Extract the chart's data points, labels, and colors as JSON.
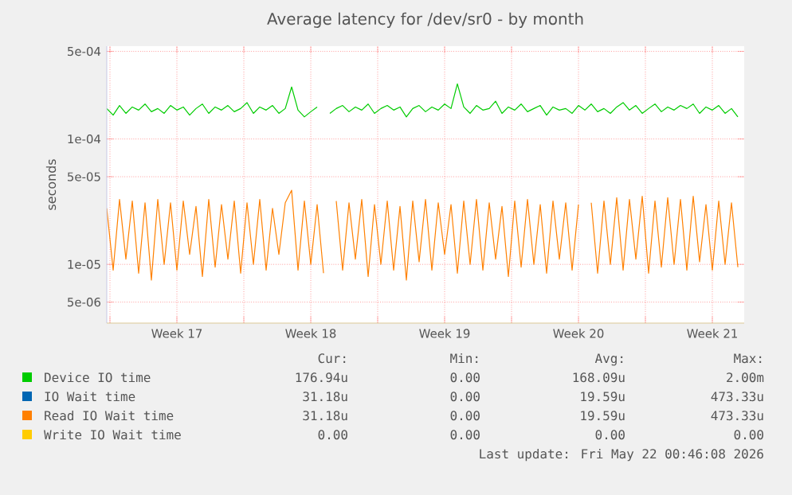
{
  "chart_data": {
    "type": "line",
    "title": "Average latency for /dev/sr0 - by month",
    "ylabel": "seconds",
    "log": "y",
    "grid": true,
    "legend": "bottom",
    "marker": "none",
    "line_style": "solid",
    "xlim": [
      "2026-04-19T20:00",
      "2026-05-23T04:00"
    ],
    "xticks": [
      {
        "value": "2026-04-20",
        "label": null
      },
      {
        "value": "2026-04-23T12:00",
        "label": "Week 17"
      },
      {
        "value": "2026-04-27",
        "label": null
      },
      {
        "value": "2026-04-30T12:00",
        "label": "Week 18"
      },
      {
        "value": "2026-05-04",
        "label": null
      },
      {
        "value": "2026-05-07T12:00",
        "label": "Week 19"
      },
      {
        "value": "2026-05-11",
        "label": null
      },
      {
        "value": "2026-05-14T12:00",
        "label": "Week 20"
      },
      {
        "value": "2026-05-18",
        "label": null
      },
      {
        "value": "2026-05-21T12:00",
        "label": "Week 21"
      }
    ],
    "ylim": [
      3.4e-06,
      0.00055
    ],
    "yticks": [
      {
        "value": 5e-06,
        "label": "5e-06"
      },
      {
        "value": 1e-05,
        "label": "1e-05"
      },
      {
        "value": 5e-05,
        "label": "5e-05"
      },
      {
        "value": 0.0001,
        "label": "1e-04"
      },
      {
        "value": 0.0005,
        "label": "5e-04"
      }
    ],
    "x": [
      "2026-04-19T20:00",
      "2026-04-20T04:00",
      "2026-04-20T12:00",
      "2026-04-20T20:00",
      "2026-04-21T04:00",
      "2026-04-21T12:00",
      "2026-04-21T20:00",
      "2026-04-22T04:00",
      "2026-04-22T12:00",
      "2026-04-22T20:00",
      "2026-04-23T04:00",
      "2026-04-23T12:00",
      "2026-04-23T20:00",
      "2026-04-24T04:00",
      "2026-04-24T12:00",
      "2026-04-24T20:00",
      "2026-04-25T04:00",
      "2026-04-25T12:00",
      "2026-04-25T20:00",
      "2026-04-26T04:00",
      "2026-04-26T12:00",
      "2026-04-26T20:00",
      "2026-04-27T04:00",
      "2026-04-27T12:00",
      "2026-04-27T20:00",
      "2026-04-28T04:00",
      "2026-04-28T12:00",
      "2026-04-28T20:00",
      "2026-04-29T04:00",
      "2026-04-29T12:00",
      "2026-04-29T20:00",
      "2026-04-30T04:00",
      "2026-04-30T12:00",
      "2026-04-30T20:00",
      "2026-05-01T04:00",
      "2026-05-01T12:00",
      "2026-05-01T20:00",
      "2026-05-02T04:00",
      "2026-05-02T12:00",
      "2026-05-02T20:00",
      "2026-05-03T04:00",
      "2026-05-03T12:00",
      "2026-05-03T20:00",
      "2026-05-04T04:00",
      "2026-05-04T12:00",
      "2026-05-04T20:00",
      "2026-05-05T04:00",
      "2026-05-05T12:00",
      "2026-05-05T20:00",
      "2026-05-06T04:00",
      "2026-05-06T12:00",
      "2026-05-06T20:00",
      "2026-05-07T04:00",
      "2026-05-07T12:00",
      "2026-05-07T20:00",
      "2026-05-08T04:00",
      "2026-05-08T12:00",
      "2026-05-08T20:00",
      "2026-05-09T04:00",
      "2026-05-09T12:00",
      "2026-05-09T20:00",
      "2026-05-10T04:00",
      "2026-05-10T12:00",
      "2026-05-10T20:00",
      "2026-05-11T04:00",
      "2026-05-11T12:00",
      "2026-05-11T20:00",
      "2026-05-12T04:00",
      "2026-05-12T12:00",
      "2026-05-12T20:00",
      "2026-05-13T04:00",
      "2026-05-13T12:00",
      "2026-05-13T20:00",
      "2026-05-14T04:00",
      "2026-05-14T12:00",
      "2026-05-14T20:00",
      "2026-05-15T04:00",
      "2026-05-15T12:00",
      "2026-05-15T20:00",
      "2026-05-16T04:00",
      "2026-05-16T12:00",
      "2026-05-16T20:00",
      "2026-05-17T04:00",
      "2026-05-17T12:00",
      "2026-05-17T20:00",
      "2026-05-18T04:00",
      "2026-05-18T12:00",
      "2026-05-18T20:00",
      "2026-05-19T04:00",
      "2026-05-19T12:00",
      "2026-05-19T20:00",
      "2026-05-20T04:00",
      "2026-05-20T12:00",
      "2026-05-20T20:00",
      "2026-05-21T04:00",
      "2026-05-21T12:00",
      "2026-05-21T20:00",
      "2026-05-22T04:00",
      "2026-05-22T12:00",
      "2026-05-22T20:00"
    ],
    "series": [
      {
        "name": "Device IO time",
        "color": "#00cc00",
        "values": [
          0.000175,
          0.000155,
          0.000185,
          0.00016,
          0.00018,
          0.00017,
          0.00019,
          0.000165,
          0.000175,
          0.00016,
          0.000185,
          0.00017,
          0.00018,
          0.000155,
          0.000175,
          0.00019,
          0.00016,
          0.00018,
          0.00017,
          0.000185,
          0.000165,
          0.000175,
          0.000195,
          0.00016,
          0.00018,
          0.00017,
          0.000185,
          0.00016,
          0.000175,
          0.00026,
          0.00017,
          0.00015,
          0.000165,
          0.00018,
          null,
          0.00016,
          0.000175,
          0.000185,
          0.000165,
          0.00018,
          0.00017,
          0.00019,
          0.00016,
          0.000175,
          0.000185,
          0.00017,
          0.00018,
          0.00015,
          0.000175,
          0.000185,
          0.000165,
          0.00018,
          0.00017,
          0.00019,
          0.000175,
          0.000275,
          0.00018,
          0.00016,
          0.000185,
          0.00017,
          0.000175,
          0.0002,
          0.00016,
          0.00018,
          0.00017,
          0.00019,
          0.000165,
          0.000175,
          0.000185,
          0.000155,
          0.00018,
          0.00017,
          0.000175,
          0.00016,
          0.000185,
          0.00017,
          0.00019,
          0.000165,
          0.000175,
          0.00016,
          0.00018,
          0.000195,
          0.00017,
          0.000185,
          0.00016,
          0.000175,
          0.00019,
          0.000165,
          0.00018,
          0.00017,
          0.000185,
          0.000175,
          0.00019,
          0.00016,
          0.00018,
          0.00017,
          0.000185,
          0.00016,
          0.000175,
          0.00015
        ]
      },
      {
        "name": "IO Wait time",
        "color": "#0066b3",
        "values": [
          null,
          null,
          null,
          null,
          null,
          null,
          null,
          null,
          null,
          null,
          null,
          null,
          null,
          null,
          null,
          null,
          null,
          null,
          null,
          null,
          null,
          null,
          null,
          null,
          null,
          null,
          null,
          null,
          null,
          null,
          null,
          null,
          null,
          null,
          null,
          null,
          null,
          null,
          null,
          null,
          null,
          null,
          null,
          null,
          null,
          null,
          null,
          null,
          null,
          null,
          null,
          null,
          null,
          null,
          null,
          null,
          null,
          null,
          null,
          null,
          null,
          null,
          null,
          null,
          null,
          null,
          null,
          null,
          null,
          null,
          null,
          null,
          null,
          null,
          null,
          null,
          null,
          null,
          null,
          null,
          null,
          null,
          null,
          null,
          null,
          null,
          null,
          null,
          null,
          null,
          null,
          null,
          null,
          null,
          null,
          null,
          null,
          null,
          null,
          null
        ]
      },
      {
        "name": "Read IO Wait time",
        "color": "#ff8000",
        "values": [
          2.8e-05,
          9e-06,
          3.3e-05,
          1.1e-05,
          3.2e-05,
          8.5e-06,
          3.1e-05,
          7.5e-06,
          3.3e-05,
          1e-05,
          3.1e-05,
          9e-06,
          3.2e-05,
          1.2e-05,
          2.9e-05,
          8e-06,
          3.3e-05,
          9.5e-06,
          3e-05,
          1.1e-05,
          3.2e-05,
          8.5e-06,
          3.1e-05,
          1e-05,
          3.3e-05,
          9e-06,
          2.8e-05,
          1.2e-05,
          3.1e-05,
          3.9e-05,
          9e-06,
          3.2e-05,
          1e-05,
          3e-05,
          8.5e-06,
          null,
          3.2e-05,
          9e-06,
          3.1e-05,
          1.1e-05,
          3.3e-05,
          8e-06,
          3e-05,
          1e-05,
          3.2e-05,
          9e-06,
          2.9e-05,
          7.5e-06,
          3.2e-05,
          1.05e-05,
          3.3e-05,
          9e-06,
          3.1e-05,
          1.2e-05,
          3e-05,
          8.5e-06,
          3.2e-05,
          1e-05,
          3.3e-05,
          9e-06,
          3.1e-05,
          1.1e-05,
          2.9e-05,
          8e-06,
          3.2e-05,
          9.5e-06,
          3.3e-05,
          1e-05,
          3e-05,
          8.5e-06,
          3.2e-05,
          1.1e-05,
          3.1e-05,
          9e-06,
          3e-05,
          null,
          3.1e-05,
          8.5e-06,
          3.2e-05,
          1e-05,
          3.4e-05,
          9e-06,
          3.3e-05,
          1.1e-05,
          3.5e-05,
          8.5e-06,
          3.2e-05,
          9.5e-06,
          3.4e-05,
          1e-05,
          3.3e-05,
          9e-06,
          3.5e-05,
          1.05e-05,
          3e-05,
          9e-06,
          3.2e-05,
          1e-05,
          3.1e-05,
          9.5e-06
        ]
      },
      {
        "name": "Write IO Wait time",
        "color": "#ffcc00",
        "values": [
          null,
          null,
          null,
          null,
          null,
          null,
          null,
          null,
          null,
          null,
          null,
          null,
          null,
          null,
          null,
          null,
          null,
          null,
          null,
          null,
          null,
          null,
          null,
          null,
          null,
          null,
          null,
          null,
          null,
          null,
          null,
          null,
          null,
          null,
          null,
          null,
          null,
          null,
          null,
          null,
          null,
          null,
          null,
          null,
          null,
          null,
          null,
          null,
          null,
          null,
          null,
          null,
          null,
          null,
          null,
          null,
          null,
          null,
          null,
          null,
          null,
          null,
          null,
          null,
          null,
          null,
          null,
          null,
          null,
          null,
          null,
          null,
          null,
          null,
          null,
          null,
          null,
          null,
          null,
          null,
          null,
          null,
          null,
          null,
          null,
          null,
          null,
          null,
          null,
          null,
          null,
          null,
          null,
          null,
          null,
          null,
          null,
          null,
          null,
          null
        ]
      }
    ],
    "annotations": [
      "Cur:",
      "Min:",
      "Avg:",
      "Max:",
      "176.94u",
      "0.00",
      "168.09u",
      "2.00m",
      "31.18u",
      "0.00",
      "19.59u",
      "473.33u",
      "31.18u",
      "0.00",
      "19.59u",
      "473.33u",
      "0.00",
      "0.00",
      "0.00",
      "0.00",
      "Last update: Fri May 22 00:46:08 2026"
    ]
  }
}
